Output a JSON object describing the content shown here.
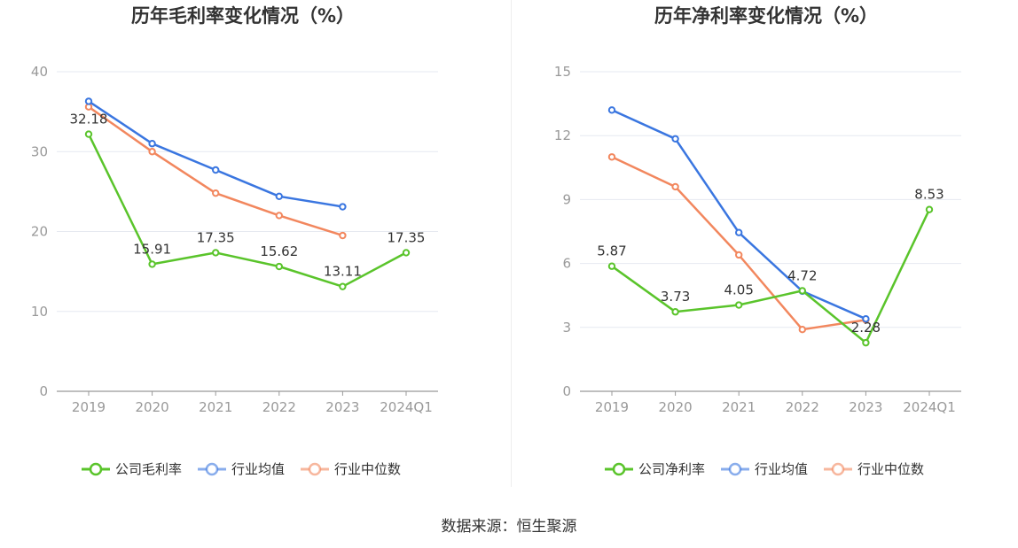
{
  "chart_data": [
    {
      "type": "line",
      "title": "历年毛利率变化情况（%）",
      "categories": [
        "2019",
        "2020",
        "2021",
        "2022",
        "2023",
        "2024Q1"
      ],
      "ylim": [
        0,
        40
      ],
      "yticks": [
        0,
        10,
        20,
        30,
        40
      ],
      "grid": true,
      "legend_position": "bottom",
      "series": [
        {
          "name": "公司毛利率",
          "color": "#5ac42b",
          "values": [
            32.18,
            15.91,
            17.35,
            15.62,
            13.11,
            17.35
          ],
          "labels": [
            "32.18",
            "15.91",
            "17.35",
            "15.62",
            "13.11",
            "17.35"
          ]
        },
        {
          "name": "行业均值",
          "color": "#3a76e0",
          "values": [
            36.3,
            31.0,
            27.7,
            24.4,
            23.1,
            null
          ]
        },
        {
          "name": "行业中位数",
          "color": "#f2875e",
          "values": [
            35.6,
            30.0,
            24.8,
            22.0,
            19.5,
            null
          ]
        }
      ]
    },
    {
      "type": "line",
      "title": "历年净利率变化情况（%）",
      "categories": [
        "2019",
        "2020",
        "2021",
        "2022",
        "2023",
        "2024Q1"
      ],
      "ylim": [
        0,
        15
      ],
      "yticks": [
        0,
        3,
        6,
        9,
        12,
        15
      ],
      "grid": true,
      "legend_position": "bottom",
      "series": [
        {
          "name": "公司净利率",
          "color": "#5ac42b",
          "values": [
            5.87,
            3.73,
            4.05,
            4.72,
            2.28,
            8.53
          ],
          "labels": [
            "5.87",
            "3.73",
            "4.05",
            "4.72",
            "2.28",
            "8.53"
          ]
        },
        {
          "name": "行业均值",
          "color": "#3a76e0",
          "values": [
            13.2,
            11.85,
            7.45,
            4.7,
            3.4,
            null
          ]
        },
        {
          "name": "行业中位数",
          "color": "#f2875e",
          "values": [
            11.0,
            9.6,
            6.4,
            2.9,
            3.35,
            null
          ]
        }
      ]
    }
  ],
  "source": "数据来源：恒生聚源"
}
